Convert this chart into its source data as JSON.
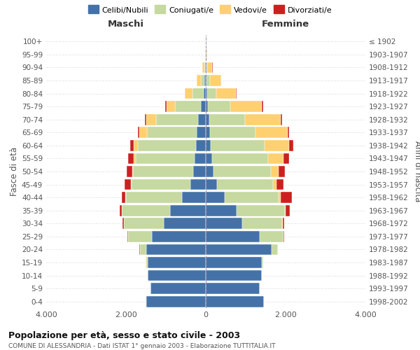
{
  "age_groups": [
    "0-4",
    "5-9",
    "10-14",
    "15-19",
    "20-24",
    "25-29",
    "30-34",
    "35-39",
    "40-44",
    "45-49",
    "50-54",
    "55-59",
    "60-64",
    "65-69",
    "70-74",
    "75-79",
    "80-84",
    "85-89",
    "90-94",
    "95-99",
    "100+"
  ],
  "birth_years": [
    "1998-2002",
    "1993-1997",
    "1988-1992",
    "1983-1987",
    "1978-1982",
    "1973-1977",
    "1968-1972",
    "1963-1967",
    "1958-1962",
    "1953-1957",
    "1948-1952",
    "1943-1947",
    "1938-1942",
    "1933-1937",
    "1928-1932",
    "1923-1927",
    "1918-1922",
    "1913-1917",
    "1908-1912",
    "1903-1907",
    "≤ 1902"
  ],
  "male": {
    "celibi": [
      1500,
      1380,
      1450,
      1450,
      1500,
      1350,
      1050,
      900,
      600,
      380,
      320,
      280,
      250,
      220,
      200,
      120,
      60,
      30,
      10,
      4,
      2
    ],
    "coniugati": [
      5,
      5,
      10,
      50,
      150,
      600,
      1000,
      1200,
      1400,
      1480,
      1500,
      1480,
      1450,
      1250,
      1050,
      650,
      280,
      100,
      30,
      8,
      2
    ],
    "vedovi": [
      0,
      0,
      0,
      2,
      5,
      5,
      5,
      5,
      10,
      20,
      30,
      50,
      100,
      200,
      250,
      220,
      180,
      100,
      50,
      12,
      2
    ],
    "divorziati": [
      0,
      0,
      0,
      3,
      5,
      10,
      30,
      60,
      100,
      150,
      140,
      130,
      100,
      40,
      30,
      20,
      10,
      5,
      2,
      0,
      0
    ]
  },
  "female": {
    "nubili": [
      1450,
      1350,
      1400,
      1400,
      1650,
      1350,
      920,
      780,
      480,
      280,
      200,
      160,
      130,
      100,
      80,
      60,
      40,
      25,
      10,
      4,
      2
    ],
    "coniugate": [
      2,
      3,
      8,
      40,
      150,
      600,
      1000,
      1200,
      1350,
      1400,
      1430,
      1400,
      1350,
      1150,
      900,
      550,
      220,
      80,
      25,
      8,
      2
    ],
    "vedove": [
      0,
      0,
      0,
      2,
      5,
      5,
      10,
      20,
      50,
      100,
      200,
      380,
      600,
      800,
      900,
      800,
      500,
      280,
      130,
      30,
      5
    ],
    "divorziate": [
      0,
      0,
      0,
      2,
      5,
      10,
      30,
      100,
      280,
      170,
      160,
      150,
      120,
      40,
      40,
      20,
      10,
      5,
      2,
      0,
      0
    ]
  },
  "colors": {
    "celibi": "#4472a8",
    "coniugati": "#c5d9a0",
    "vedovi": "#ffd070",
    "divorziati": "#cc2020"
  },
  "legend_labels": [
    "Celibi/Nubili",
    "Coniugati/e",
    "Vedovi/e",
    "Divorziati/e"
  ],
  "title": "Popolazione per età, sesso e stato civile - 2003",
  "subtitle": "COMUNE DI ALESSANDRIA - Dati ISTAT 1° gennaio 2003 - Elaborazione TUTTITALIA.IT",
  "xlabel_left": "Maschi",
  "xlabel_right": "Femmine",
  "ylabel_left": "Fasce di età",
  "ylabel_right": "Anni di nascita",
  "xlim": 4000,
  "background_color": "#ffffff"
}
